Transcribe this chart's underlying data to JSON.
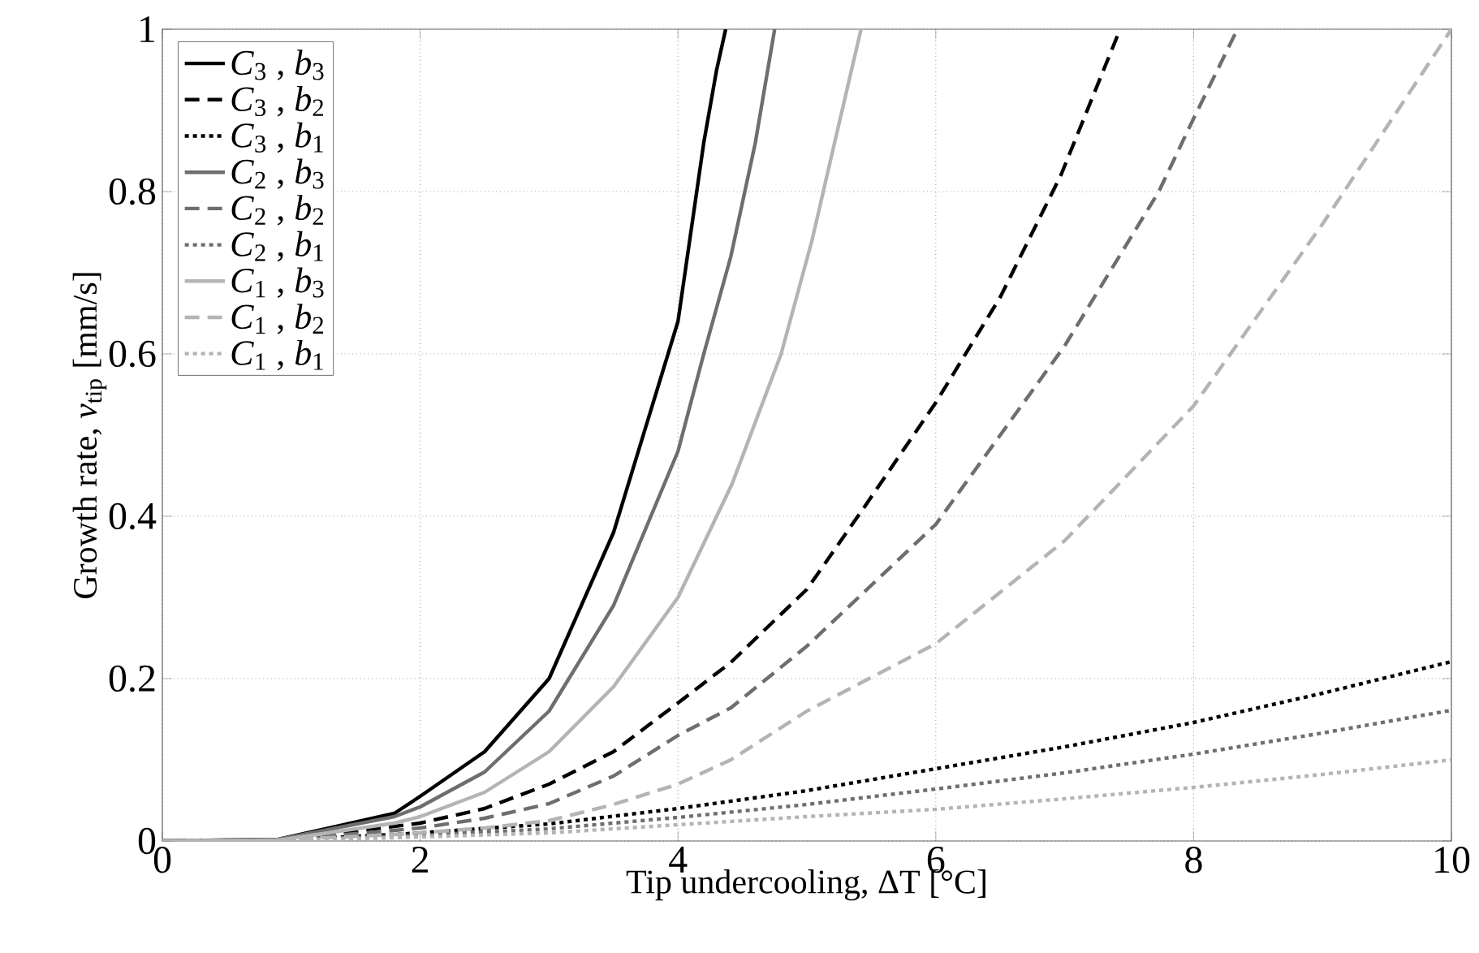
{
  "chart_data": {
    "type": "line",
    "xlabel": "Tip undercooling, ΔT  [°C]",
    "ylabel": "Growth rate, *v*$_{tip}$ [mm/s]",
    "xlim": [
      0,
      10
    ],
    "ylim": [
      0,
      1
    ],
    "xticks": [
      0,
      2,
      4,
      6,
      8,
      10
    ],
    "yticks": [
      0,
      0.2,
      0.4,
      0.6,
      0.8,
      1
    ],
    "grid": true,
    "legend": "top left",
    "marker": "none",
    "series": [
      {
        "name": "*C*$_{3}$ , *b*$_{3}$",
        "color": "#000000",
        "line_style": "solid",
        "x": [
          0,
          0.9,
          1.8,
          2,
          2.5,
          3,
          3.5,
          4,
          4.2,
          4.3,
          4.37
        ],
        "values": [
          0,
          0.002,
          0.034,
          0.055,
          0.11,
          0.2,
          0.38,
          0.64,
          0.86,
          0.95,
          1
        ]
      },
      {
        "name": "*C*$_{3}$ , *b*$_{2}$",
        "color": "#000000",
        "line_style": "dashed",
        "x": [
          0,
          0.9,
          1.8,
          2,
          2.5,
          3,
          3.5,
          4,
          4.41,
          5,
          5.44,
          6,
          6.5,
          6.97,
          7.43
        ],
        "values": [
          0,
          0.001,
          0.018,
          0.022,
          0.04,
          0.07,
          0.11,
          0.17,
          0.22,
          0.31,
          0.41,
          0.54,
          0.67,
          0.82,
          1
        ]
      },
      {
        "name": "*C*$_{3}$ , *b*$_{1}$",
        "color": "#000000",
        "line_style": "dotted",
        "x": [
          0,
          0.9,
          1.8,
          2,
          3,
          4,
          5,
          6,
          7,
          8,
          9,
          10
        ],
        "values": [
          0,
          0.001,
          0.008,
          0.01,
          0.021,
          0.04,
          0.062,
          0.089,
          0.116,
          0.146,
          0.182,
          0.221
        ]
      },
      {
        "name": "*C*$_{2}$ , *b*$_{3}$",
        "color": "#6e6e6e",
        "line_style": "solid",
        "x": [
          0,
          0.9,
          1.8,
          2,
          2.5,
          3,
          3.5,
          4,
          4.2,
          4.41,
          4.6,
          4.75
        ],
        "values": [
          0,
          0.002,
          0.03,
          0.042,
          0.085,
          0.16,
          0.29,
          0.48,
          0.6,
          0.72,
          0.86,
          1
        ]
      },
      {
        "name": "*C*$_{2}$ , *b*$_{2}$",
        "color": "#6e6e6e",
        "line_style": "dashed",
        "x": [
          0,
          0.9,
          1.8,
          2,
          2.5,
          3,
          3.5,
          4,
          4.41,
          5,
          6,
          7,
          7.73,
          8,
          8.34
        ],
        "values": [
          0,
          0.001,
          0.013,
          0.016,
          0.028,
          0.046,
          0.08,
          0.13,
          0.164,
          0.24,
          0.39,
          0.61,
          0.8,
          0.89,
          1
        ]
      },
      {
        "name": "*C*$_{2}$ , *b*$_{1}$",
        "color": "#6e6e6e",
        "line_style": "dotted",
        "x": [
          0,
          0.9,
          1.8,
          2,
          3,
          4,
          5,
          6,
          7,
          8,
          9,
          10
        ],
        "values": [
          0,
          0.001,
          0.006,
          0.007,
          0.015,
          0.029,
          0.045,
          0.064,
          0.084,
          0.107,
          0.133,
          0.161
        ]
      },
      {
        "name": "*C*$_{1}$ , *b*$_{3}$",
        "color": "#b4b4b4",
        "line_style": "solid",
        "x": [
          0,
          0.9,
          1.8,
          2,
          2.5,
          3,
          3.5,
          4,
          4.42,
          4.8,
          5.04,
          5.2,
          5.42
        ],
        "values": [
          0,
          0.001,
          0.022,
          0.03,
          0.06,
          0.11,
          0.19,
          0.3,
          0.44,
          0.6,
          0.74,
          0.85,
          1
        ]
      },
      {
        "name": "*C*$_{1}$ , *b*$_{2}$",
        "color": "#b4b4b4",
        "line_style": "dashed",
        "x": [
          0,
          0.9,
          1.8,
          2,
          2.5,
          3,
          3.5,
          4,
          4.41,
          5,
          6,
          7,
          8,
          9,
          9.5,
          10
        ],
        "values": [
          0,
          0.001,
          0.008,
          0.01,
          0.016,
          0.025,
          0.045,
          0.07,
          0.1,
          0.16,
          0.243,
          0.37,
          0.536,
          0.76,
          0.88,
          1
        ]
      },
      {
        "name": "*C*$_{1}$ , *b*$_{1}$",
        "color": "#b4b4b4",
        "line_style": "dotted",
        "x": [
          0,
          0.9,
          1.8,
          2,
          3,
          4,
          5,
          6,
          7,
          8,
          9,
          10
        ],
        "values": [
          0,
          0.001,
          0.004,
          0.005,
          0.01,
          0.02,
          0.03,
          0.039,
          0.052,
          0.066,
          0.082,
          0.1
        ]
      }
    ]
  }
}
